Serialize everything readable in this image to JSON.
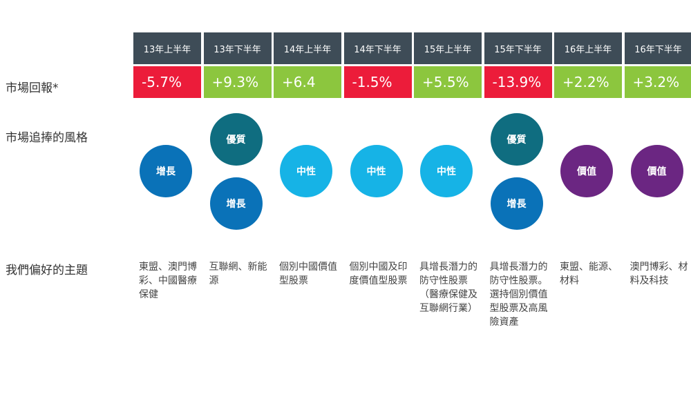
{
  "labels": {
    "market_return": "市場回報*",
    "market_style": "市場追捧的風格",
    "preferred_themes": "我們偏好的主題"
  },
  "colors": {
    "header_bg": "#3e4c57",
    "negative": "#ec1c3a",
    "positive": "#8cc63e",
    "growth": "#0a72b8",
    "quality": "#0f6d80",
    "neutral": "#16b3e6",
    "value": "#6b2682"
  },
  "periods": [
    {
      "period": "13年上半年",
      "return": "-5.7%",
      "return_sign": "negative",
      "styles": [
        {
          "label": "增長",
          "kind": "growth"
        }
      ],
      "themes": "東盟、澳門博彩、中國醫療保健"
    },
    {
      "period": "13年下半年",
      "return": "+9.3%",
      "return_sign": "positive",
      "styles": [
        {
          "label": "優質",
          "kind": "quality"
        },
        {
          "label": "增長",
          "kind": "growth"
        }
      ],
      "themes": "互聯網、新能源"
    },
    {
      "period": "14年上半年",
      "return": "+6.4",
      "return_sign": "positive",
      "styles": [
        {
          "label": "中性",
          "kind": "neutral"
        }
      ],
      "themes": "個別中國價值型股票"
    },
    {
      "period": "14年下半年",
      "return": "-1.5%",
      "return_sign": "negative",
      "styles": [
        {
          "label": "中性",
          "kind": "neutral"
        }
      ],
      "themes": "個別中國及印度價值型股票"
    },
    {
      "period": "15年上半年",
      "return": "+5.5%",
      "return_sign": "positive",
      "styles": [
        {
          "label": "中性",
          "kind": "neutral"
        }
      ],
      "themes": "具增長潛力的防守性股票（醫療保健及互聯網行業）"
    },
    {
      "period": "15年下半年",
      "return": "-13.9%",
      "return_sign": "negative",
      "styles": [
        {
          "label": "優質",
          "kind": "quality"
        },
        {
          "label": "增長",
          "kind": "growth"
        }
      ],
      "themes": "具增長潛力的防守性股票。選持個別價值型股票及高風險資產"
    },
    {
      "period": "16年上半年",
      "return": "+2.2%",
      "return_sign": "positive",
      "styles": [
        {
          "label": "價值",
          "kind": "value"
        }
      ],
      "themes": "東盟、能源、材料"
    },
    {
      "period": "16年下半年",
      "return": "+3.2%",
      "return_sign": "positive",
      "styles": [
        {
          "label": "價值",
          "kind": "value"
        }
      ],
      "themes": "澳門博彩、材料及科技"
    }
  ]
}
